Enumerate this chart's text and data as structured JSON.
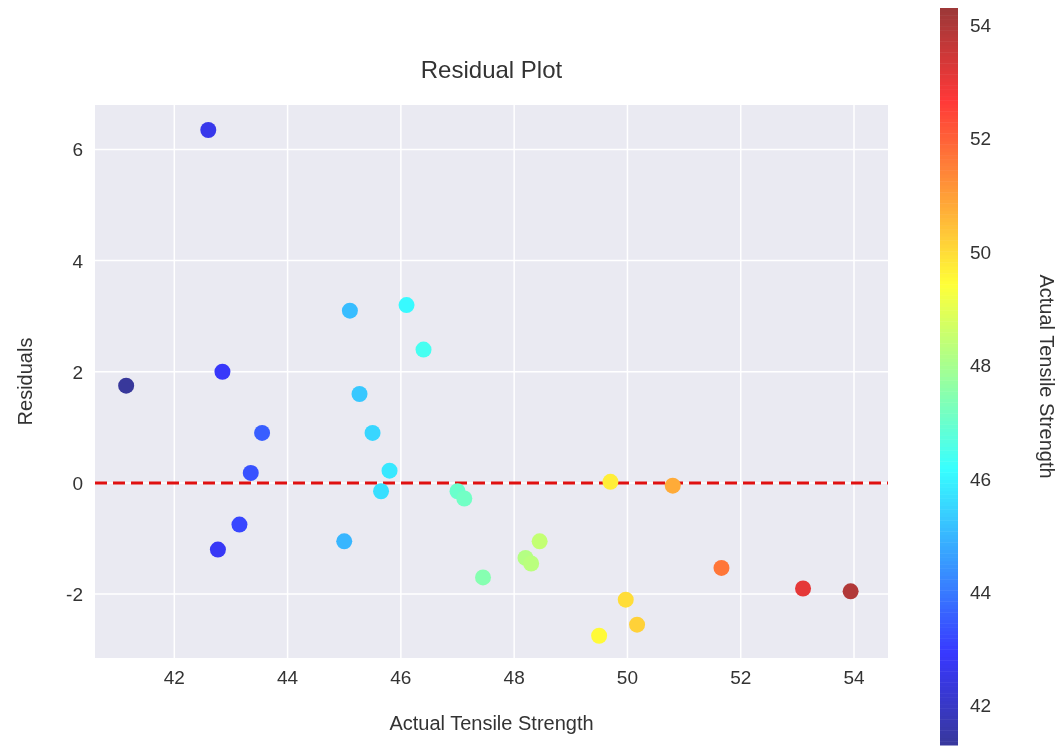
{
  "chart_data": {
    "type": "scatter",
    "title": "Residual Plot",
    "xlabel": "Actual Tensile Strength",
    "ylabel": "Residuals",
    "clabel": "Actual Tensile Strength",
    "x": [
      41.15,
      42.6,
      42.85,
      43.55,
      43.35,
      43.15,
      42.77,
      45.1,
      46.1,
      46.4,
      45.27,
      45.5,
      45.8,
      45.65,
      45.0,
      47.0,
      47.12,
      47.45,
      48.2,
      48.3,
      48.45,
      49.7,
      50.8,
      51.66,
      53.1,
      53.94,
      49.97,
      50.17,
      49.5
    ],
    "values": [
      1.75,
      6.35,
      2.0,
      0.9,
      0.18,
      -0.75,
      -1.2,
      3.1,
      3.2,
      2.4,
      1.6,
      0.9,
      0.22,
      -0.15,
      -1.05,
      -0.15,
      -0.28,
      -1.7,
      -1.35,
      -1.45,
      -1.05,
      0.02,
      -0.05,
      -1.53,
      -1.9,
      -1.95,
      -2.1,
      -2.55,
      -2.75
    ],
    "cvalues": [
      41.15,
      42.6,
      42.85,
      43.55,
      43.35,
      43.15,
      42.77,
      45.1,
      46.1,
      46.4,
      45.27,
      45.5,
      45.8,
      45.65,
      45.0,
      47.0,
      47.12,
      47.45,
      48.2,
      48.3,
      48.45,
      49.7,
      50.8,
      51.66,
      53.1,
      53.94,
      49.97,
      50.17,
      49.5
    ],
    "clim": [
      41.3,
      54.3
    ],
    "cticks": [
      42,
      44,
      46,
      48,
      50,
      52,
      54
    ],
    "xlim": [
      40.6,
      54.6
    ],
    "xticks": [
      42,
      44,
      46,
      48,
      50,
      52,
      54
    ],
    "ylim": [
      -3.15,
      6.8
    ],
    "yticks": [
      -2,
      0,
      2,
      4,
      6
    ],
    "ref_lines": [
      {
        "axis": "y",
        "value": 0,
        "color": "#e01010",
        "line_style": "dashed"
      }
    ],
    "grid": true,
    "marker": "circle"
  }
}
